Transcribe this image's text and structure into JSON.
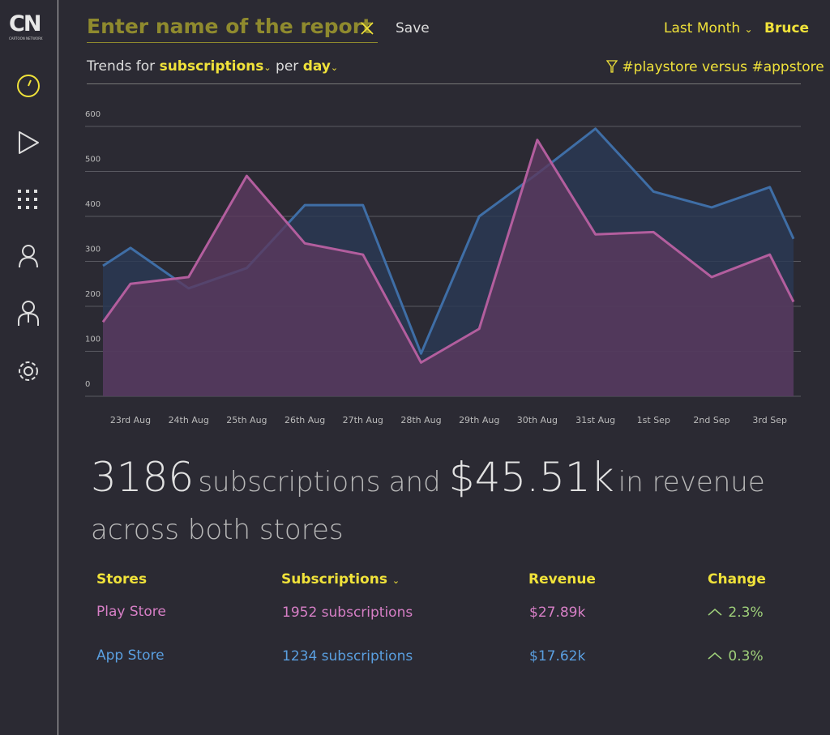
{
  "sidebar": {
    "logo": "CN",
    "logo_sub": "CARTOON NETWORK"
  },
  "header": {
    "report_name_placeholder": "Enter name of the report",
    "save": "Save",
    "period": "Last Month",
    "user": "Bruce"
  },
  "trend": {
    "prefix": "Trends for",
    "metric": "subscriptions",
    "per": "per",
    "unit": "day",
    "filter": "#playstore versus #appstore"
  },
  "chart_data": {
    "type": "line",
    "area": true,
    "categories": [
      null,
      "23rd Aug",
      "24th Aug",
      "25th Aug",
      "26th Aug",
      "27th Aug",
      "28th Aug",
      "29th Aug",
      "30th Aug",
      "31st Aug",
      "1st Sep",
      "2nd Sep",
      "3rd Sep",
      null
    ],
    "series": [
      {
        "color": "#3f6ea6",
        "fill": "#2a3a55",
        "values": [
          290,
          330,
          240,
          285,
          425,
          425,
          95,
          400,
          495,
          595,
          455,
          420,
          465,
          350
        ]
      },
      {
        "color": "#b35e9e",
        "fill": "#5b3a5f",
        "values": [
          165,
          250,
          265,
          490,
          340,
          315,
          75,
          150,
          570,
          360,
          365,
          265,
          315,
          210
        ]
      }
    ],
    "ylim": [
      0,
      600
    ],
    "yticks": [
      0,
      100,
      200,
      300,
      400,
      500,
      600
    ],
    "grid": true
  },
  "summary": {
    "count": "3186",
    "count_label": "subscriptions",
    "and": "and",
    "revenue": "$45.51k",
    "revenue_label": "in revenue",
    "scope": "across both stores"
  },
  "table": {
    "headers": [
      "Stores",
      "Subscriptions",
      "Revenue",
      "Change"
    ],
    "rows": [
      [
        "Play Store",
        "1952 subscriptions",
        "$27.89k",
        "2.3%"
      ],
      [
        "App Store",
        "1234 subscriptions",
        "$17.62k",
        "0.3%"
      ]
    ]
  }
}
